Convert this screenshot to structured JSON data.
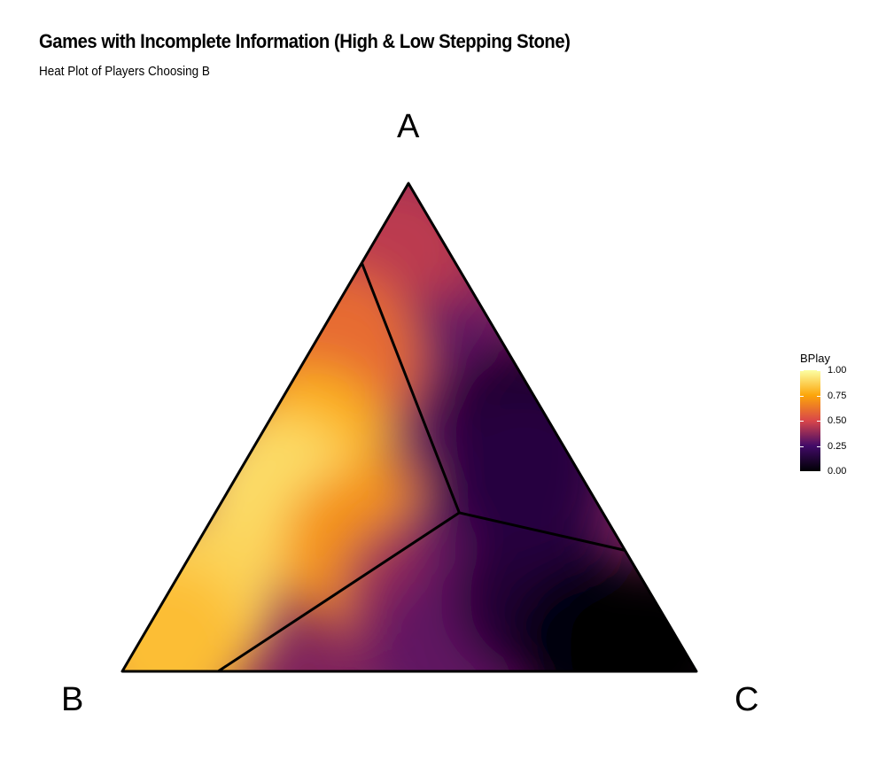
{
  "chart_data": {
    "type": "heatmap",
    "title": "Games with Incomplete Information (High & Low Stepping Stone)",
    "subtitle": "Heat Plot of Players Choosing B",
    "vertices": {
      "top": "A",
      "left": "B",
      "right": "C"
    },
    "legend": {
      "title": "BPlay",
      "ticks": [
        "1.00",
        "0.75",
        "0.50",
        "0.25",
        "0.00"
      ],
      "range": [
        0,
        1
      ],
      "palette": [
        "#000004",
        "#420a68",
        "#d9464a",
        "#fca50a",
        "#fcffa4"
      ]
    },
    "regions": [
      {
        "name": "B region",
        "approx_value": 0.85
      },
      {
        "name": "A region",
        "approx_value": 0.35
      },
      {
        "name": "C region",
        "approx_value": 0.1
      }
    ],
    "intensity_samples": [
      {
        "a": 0.85,
        "b": 0.1,
        "c": 0.05,
        "value": 0.45
      },
      {
        "a": 0.6,
        "b": 0.15,
        "c": 0.25,
        "value": 0.3
      },
      {
        "a": 0.5,
        "b": 0.05,
        "c": 0.45,
        "value": 0.1
      },
      {
        "a": 0.65,
        "b": 0.3,
        "c": 0.05,
        "value": 0.6
      },
      {
        "a": 0.45,
        "b": 0.45,
        "c": 0.1,
        "value": 0.78
      },
      {
        "a": 0.35,
        "b": 0.55,
        "c": 0.1,
        "value": 0.9
      },
      {
        "a": 0.15,
        "b": 0.8,
        "c": 0.05,
        "value": 0.88
      },
      {
        "a": 0.05,
        "b": 0.9,
        "c": 0.05,
        "value": 0.82
      },
      {
        "a": 0.25,
        "b": 0.45,
        "c": 0.3,
        "value": 0.7
      },
      {
        "a": 0.15,
        "b": 0.4,
        "c": 0.45,
        "value": 0.4
      },
      {
        "a": 0.05,
        "b": 0.4,
        "c": 0.55,
        "value": 0.3
      },
      {
        "a": 0.3,
        "b": 0.2,
        "c": 0.5,
        "value": 0.3
      },
      {
        "a": 0.15,
        "b": 0.2,
        "c": 0.65,
        "value": 0.12
      },
      {
        "a": 0.05,
        "b": 0.15,
        "c": 0.8,
        "value": 0.02
      },
      {
        "a": 0.05,
        "b": 0.05,
        "c": 0.9,
        "value": 0.0
      },
      {
        "a": 0.4,
        "b": 0.1,
        "c": 0.5,
        "value": 0.15
      }
    ],
    "boundaries": [
      {
        "from": {
          "a": 0.837,
          "b": 0.163,
          "c": 0.0
        },
        "to": {
          "a": 0.325,
          "b": 0.25,
          "c": 0.425
        }
      },
      {
        "from": {
          "a": 0.0,
          "b": 0.833,
          "c": 0.167
        },
        "to": {
          "a": 0.325,
          "b": 0.25,
          "c": 0.425
        }
      },
      {
        "from": {
          "a": 0.248,
          "b": 0.0,
          "c": 0.752
        },
        "to": {
          "a": 0.325,
          "b": 0.25,
          "c": 0.425
        }
      }
    ]
  }
}
